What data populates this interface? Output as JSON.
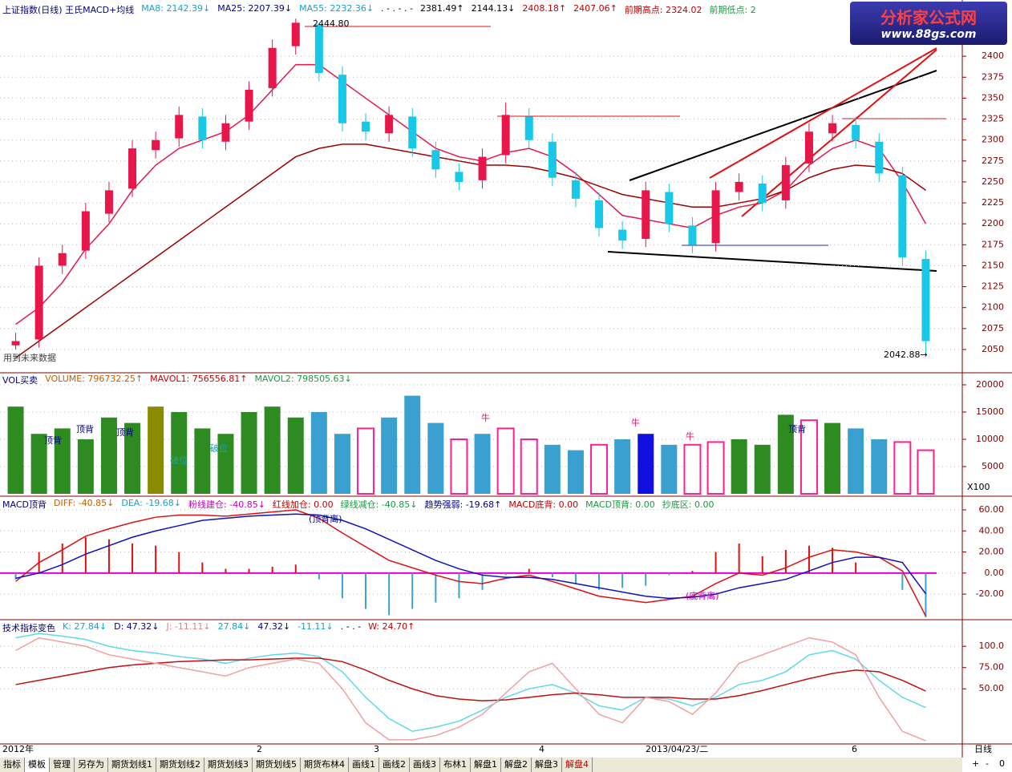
{
  "chart_data": [
    {
      "type": "candlestick",
      "header": [
        {
          "text": "上证指数(日线) 王氏MACD+均线",
          "color": "#000080"
        },
        {
          "text": "MA8: 2142.39↓",
          "color": "#1aa0c8"
        },
        {
          "text": "MA25: 2207.39↓",
          "color": "#000080"
        },
        {
          "text": "MA55: 2232.36↓",
          "color": "#1aa0c8"
        },
        {
          "text": ". - . - . -",
          "color": "#000000"
        },
        {
          "text": "2381.49↑",
          "color": "#000000"
        },
        {
          "text": "2144.13↓",
          "color": "#000000"
        },
        {
          "text": "2408.18↑",
          "color": "#c00000"
        },
        {
          "text": "2407.06↑",
          "color": "#c00000"
        },
        {
          "text": "前期高点: 2324.02",
          "color": "#c00000"
        },
        {
          "text": "前期低点: 2",
          "color": "#1a9a40"
        }
      ],
      "open": [
        2055,
        2062,
        2150,
        2168,
        2212,
        2242,
        2288,
        2302,
        2328,
        2298,
        2322,
        2362,
        2412,
        2438,
        2378,
        2322,
        2308,
        2328,
        2288,
        2262,
        2252,
        2282,
        2328,
        2298,
        2252,
        2228,
        2193,
        2182,
        2238,
        2198,
        2177,
        2238,
        2248,
        2228,
        2272,
        2308,
        2318,
        2298,
        2258,
        2158
      ],
      "high": [
        2070,
        2160,
        2175,
        2225,
        2250,
        2300,
        2310,
        2340,
        2338,
        2330,
        2370,
        2420,
        2444.8,
        2440,
        2388,
        2332,
        2340,
        2338,
        2298,
        2272,
        2290,
        2345,
        2338,
        2308,
        2262,
        2238,
        2203,
        2250,
        2248,
        2208,
        2250,
        2260,
        2258,
        2280,
        2320,
        2330,
        2328,
        2308,
        2268,
        2168
      ],
      "low": [
        2050,
        2052,
        2140,
        2158,
        2202,
        2232,
        2278,
        2292,
        2290,
        2288,
        2312,
        2352,
        2402,
        2370,
        2310,
        2300,
        2298,
        2280,
        2255,
        2240,
        2242,
        2272,
        2290,
        2245,
        2220,
        2185,
        2170,
        2172,
        2190,
        2165,
        2167,
        2228,
        2215,
        2218,
        2262,
        2298,
        2290,
        2250,
        2150,
        2042.88
      ],
      "close": [
        2060,
        2150,
        2165,
        2215,
        2240,
        2290,
        2300,
        2330,
        2300,
        2320,
        2360,
        2410,
        2440,
        2380,
        2320,
        2310,
        2330,
        2290,
        2265,
        2250,
        2280,
        2330,
        2300,
        2255,
        2230,
        2195,
        2180,
        2240,
        2200,
        2175,
        2240,
        2250,
        2225,
        2270,
        2310,
        2320,
        2300,
        2260,
        2160,
        2060
      ],
      "up_color": "#e8174b",
      "down_color": "#19c8e6",
      "lines": [
        {
          "color": "#e8174b",
          "values": [
            2080,
            2100,
            2130,
            2170,
            2200,
            2240,
            2270,
            2290,
            2300,
            2310,
            2330,
            2360,
            2390,
            2390,
            2370,
            2350,
            2330,
            2310,
            2290,
            2280,
            2275,
            2285,
            2290,
            2280,
            2260,
            2235,
            2210,
            2205,
            2200,
            2195,
            2210,
            2220,
            2225,
            2240,
            2270,
            2290,
            2300,
            2290,
            2250,
            2200
          ]
        },
        {
          "color": "#a00000",
          "values": [
            2040,
            2060,
            2080,
            2100,
            2120,
            2140,
            2160,
            2180,
            2200,
            2220,
            2240,
            2260,
            2280,
            2290,
            2295,
            2295,
            2290,
            2285,
            2280,
            2275,
            2270,
            2270,
            2268,
            2262,
            2255,
            2245,
            2235,
            2230,
            2225,
            2220,
            2220,
            2225,
            2230,
            2240,
            2255,
            2265,
            2270,
            2268,
            2260,
            2240
          ]
        }
      ],
      "ylim": [
        2027,
        2448
      ],
      "yticks": [
        2050,
        2075,
        2100,
        2125,
        2150,
        2175,
        2200,
        2225,
        2250,
        2275,
        2300,
        2325,
        2350,
        2375,
        2400
      ],
      "grid": true,
      "annotations": [
        "2444.80",
        "2042.88→",
        "用到未来数据"
      ]
    },
    {
      "type": "bar",
      "header": [
        {
          "text": "VOL买卖",
          "color": "#000080"
        },
        {
          "text": "VOLUME: 796732.25↑",
          "color": "#c06000"
        },
        {
          "text": "MAVOL1: 756556.81↑",
          "color": "#c00000"
        },
        {
          "text": "MAVOL2: 798505.63↓",
          "color": "#1a9a40"
        }
      ],
      "values": [
        16000,
        11000,
        12000,
        10000,
        14000,
        13000,
        16000,
        15000,
        12000,
        11000,
        15000,
        16000,
        14000,
        15000,
        11000,
        12000,
        14000,
        18000,
        13000,
        10000,
        11000,
        12000,
        10000,
        9000,
        8000,
        9000,
        10000,
        11000,
        9000,
        9000,
        9500,
        10000,
        9000,
        14500,
        13500,
        13000,
        12000,
        10000,
        9500,
        8000
      ],
      "colors": [
        "#2e8b22",
        "#2e8b22",
        "#2e8b22",
        "#2e8b22",
        "#2e8b22",
        "#2e8b22",
        "#8b8b00",
        "#2e8b22",
        "#2e8b22",
        "#2e8b22",
        "#2e8b22",
        "#2e8b22",
        "#2e8b22",
        "#3aa0d0",
        "#3aa0d0",
        "#ff1f8e",
        "#3aa0d0",
        "#3aa0d0",
        "#3aa0d0",
        "#ff1f8e",
        "#3aa0d0",
        "#ff1f8e",
        "#ff1f8e",
        "#3aa0d0",
        "#3aa0d0",
        "#ff1f8e",
        "#3aa0d0",
        "#1010e0",
        "#3aa0d0",
        "#ff1f8e",
        "#ff1f8e",
        "#2e8b22",
        "#2e8b22",
        "#2e8b22",
        "#ff1f8e",
        "#2e8b22",
        "#3aa0d0",
        "#3aa0d0",
        "#ff1f8e",
        "#ff1f8e"
      ],
      "hollow_color": "#ff1f8e",
      "ylim": [
        0,
        20000
      ],
      "yticks": [
        5000,
        10000,
        15000,
        20000
      ],
      "unit": "X100",
      "annotations": [
        "顶背",
        "顶背",
        "顶背",
        "破位",
        "破位",
        "牛",
        "牛",
        "牛",
        "顶背"
      ]
    },
    {
      "type": "macd",
      "header": [
        {
          "text": "MACD顶背",
          "color": "#000080"
        },
        {
          "text": "DIFF: -40.85↓",
          "color": "#c06000"
        },
        {
          "text": "DEA: -19.68↓",
          "color": "#1aa0c8"
        },
        {
          "text": "粉线建仓: -40.85↓",
          "color": "#c000c0"
        },
        {
          "text": "红线加仓: 0.00",
          "color": "#c00000"
        },
        {
          "text": "绿线减仓: -40.85↓",
          "color": "#1a9a40"
        },
        {
          "text": "趋势强弱: -19.68↑",
          "color": "#000080"
        },
        {
          "text": "MACD底背: 0.00",
          "color": "#c00000"
        },
        {
          "text": "MACD顶背: 0.00",
          "color": "#1a9a40"
        },
        {
          "text": "抄底区: 0.00",
          "color": "#1a9a40"
        }
      ],
      "series": [
        {
          "color": "#e01010",
          "values": [
            -8,
            10,
            22,
            35,
            42,
            48,
            53,
            55,
            55,
            54,
            56,
            58,
            60,
            52,
            38,
            25,
            12,
            5,
            -2,
            -8,
            -10,
            -5,
            -2,
            -8,
            -15,
            -22,
            -25,
            -28,
            -25,
            -22,
            -10,
            0,
            -2,
            5,
            15,
            22,
            20,
            15,
            2,
            -40.85
          ]
        },
        {
          "color": "#1010c0",
          "values": [
            -5,
            0,
            8,
            18,
            26,
            34,
            40,
            45,
            50,
            52,
            54,
            55,
            56,
            55,
            50,
            42,
            32,
            22,
            12,
            4,
            -2,
            -4,
            -4,
            -6,
            -10,
            -14,
            -18,
            -22,
            -24,
            -23,
            -20,
            -14,
            -10,
            -6,
            2,
            10,
            15,
            15,
            10,
            -19.68
          ]
        }
      ],
      "bars": [
        -6,
        20,
        28,
        34,
        32,
        28,
        26,
        20,
        10,
        4,
        4,
        6,
        8,
        -6,
        -24,
        -34,
        -40,
        -34,
        -28,
        -24,
        -16,
        -2,
        4,
        -4,
        -10,
        -16,
        -14,
        -12,
        -2,
        2,
        20,
        28,
        16,
        22,
        26,
        24,
        10,
        0,
        -16,
        -42
      ],
      "pos_color": "#e01010",
      "neg_color": "#3aa0d0",
      "ylim": [
        -42,
        67.6
      ],
      "yticks": [
        {
          "value": -20,
          "label": "-20.00"
        },
        {
          "value": 0,
          "label": "0.00"
        },
        {
          "value": 20,
          "label": "20.00"
        },
        {
          "value": 40,
          "label": "40.00"
        },
        {
          "value": 60,
          "label": "60.00"
        }
      ],
      "annotations": [
        "(顶背离)",
        "(底背离)"
      ]
    },
    {
      "type": "line",
      "header": [
        {
          "text": "技术指标变色",
          "color": "#000080"
        },
        {
          "text": "K: 27.84↓",
          "color": "#1aa0c8"
        },
        {
          "text": "D: 47.32↓",
          "color": "#000080"
        },
        {
          "text": "J: -11.11↓",
          "color": "#e08080"
        },
        {
          "text": "27.84↓",
          "color": "#1aa0c8"
        },
        {
          "text": "47.32↓",
          "color": "#000080"
        },
        {
          "text": "-11.11↓",
          "color": "#1aa0c8"
        },
        {
          "text": ". - . -",
          "color": "#000000"
        },
        {
          "text": "W: 24.70↑",
          "color": "#c00000"
        }
      ],
      "series": [
        {
          "color": "#60d8e8",
          "values": [
            110,
            115,
            112,
            108,
            100,
            95,
            92,
            88,
            85,
            80,
            86,
            90,
            92,
            88,
            70,
            40,
            15,
            0,
            5,
            12,
            25,
            40,
            50,
            55,
            45,
            30,
            25,
            40,
            38,
            30,
            40,
            55,
            60,
            70,
            90,
            95,
            85,
            60,
            40,
            27.84
          ]
        },
        {
          "color": "#c01010",
          "values": [
            55,
            60,
            65,
            70,
            75,
            78,
            80,
            82,
            83,
            84,
            84,
            85,
            86,
            86,
            82,
            72,
            60,
            50,
            42,
            38,
            36,
            37,
            40,
            43,
            45,
            43,
            40,
            40,
            40,
            38,
            38,
            42,
            48,
            55,
            62,
            68,
            72,
            70,
            60,
            47.32
          ]
        },
        {
          "color": "#f0a0a0",
          "values": [
            95,
            110,
            105,
            100,
            90,
            85,
            80,
            75,
            70,
            65,
            75,
            80,
            85,
            80,
            50,
            10,
            -10,
            -10,
            -5,
            5,
            20,
            45,
            70,
            80,
            50,
            20,
            10,
            40,
            35,
            20,
            45,
            80,
            90,
            100,
            110,
            105,
            90,
            40,
            0,
            -11.11
          ]
        }
      ],
      "ylim": [
        -12,
        120
      ],
      "yticks": [
        {
          "value": 50,
          "label": "50.00"
        },
        {
          "value": 75,
          "label": "75.00"
        },
        {
          "value": 100,
          "label": "100.0"
        }
      ]
    }
  ],
  "x_axis_labels": [
    "2012年",
    "2",
    "3",
    "4",
    "2013/04/23/二",
    "6"
  ],
  "period": "日线",
  "tabs": [
    "指标",
    "模板",
    "管理",
    "另存为",
    "期货划线1",
    "期货划线2",
    "期货划线3",
    "期货划线5",
    "期货布林4",
    "画线1",
    "画线2",
    "画线3",
    "布林1",
    "解盘1",
    "解盘2",
    "解盘3",
    "解盘4"
  ],
  "controls": [
    "+",
    "-",
    "0"
  ],
  "logo": {
    "title": "分析家公式网",
    "url": "www.88gs.com"
  }
}
